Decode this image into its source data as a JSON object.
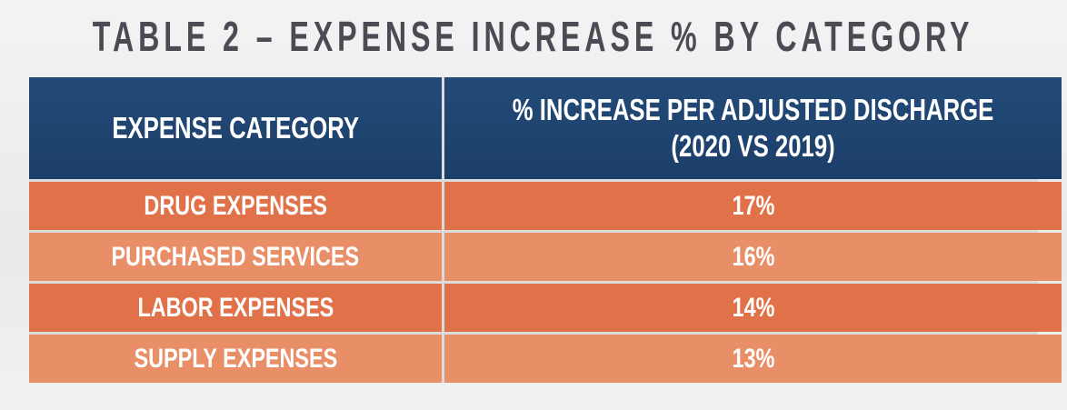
{
  "title": "TABLE 2 – EXPENSE INCREASE % BY CATEGORY",
  "table": {
    "header": {
      "category": "EXPENSE CATEGORY",
      "increase": [
        "% INCREASE PER ADJUSTED DISCHARGE",
        "(2020 VS 2019)"
      ]
    },
    "rows": [
      [
        "DRUG EXPENSES",
        "17%"
      ],
      [
        "PURCHASED SERVICES",
        "16%"
      ],
      [
        "LABOR EXPENSES",
        "14%"
      ],
      [
        "SUPPLY EXPENSES",
        "13%"
      ]
    ]
  }
}
